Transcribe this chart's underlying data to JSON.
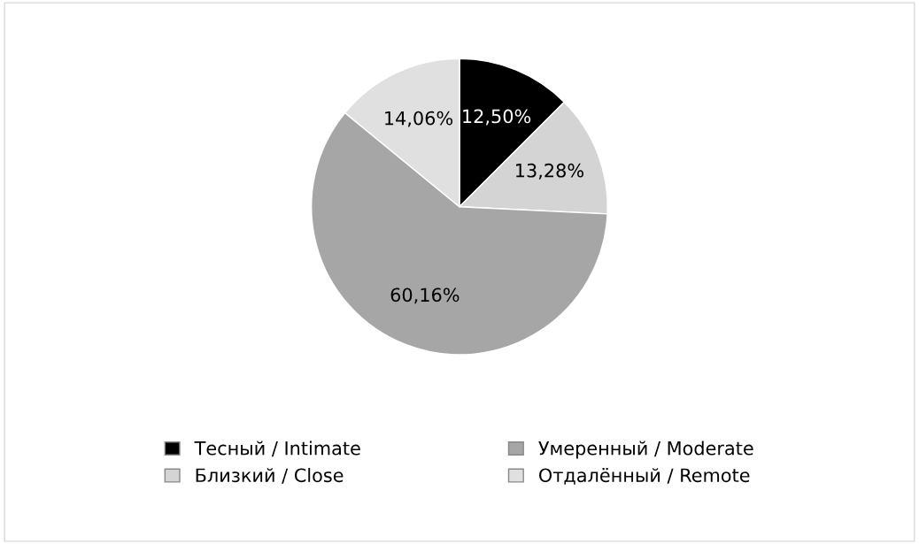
{
  "chart_data": {
    "type": "pie",
    "categories": [
      "Тесный / Intimate",
      "Близкий / Close",
      "Умеренный / Moderate",
      "Отдалённый / Remote"
    ],
    "values": [
      12.5,
      13.28,
      60.16,
      14.06
    ],
    "value_labels": [
      "12,50%",
      "13,28%",
      "60,16%",
      "14,06%"
    ],
    "colors": [
      "#000000",
      "#d4d4d4",
      "#a6a6a6",
      "#e0e0e0"
    ],
    "legend": "bottom"
  }
}
